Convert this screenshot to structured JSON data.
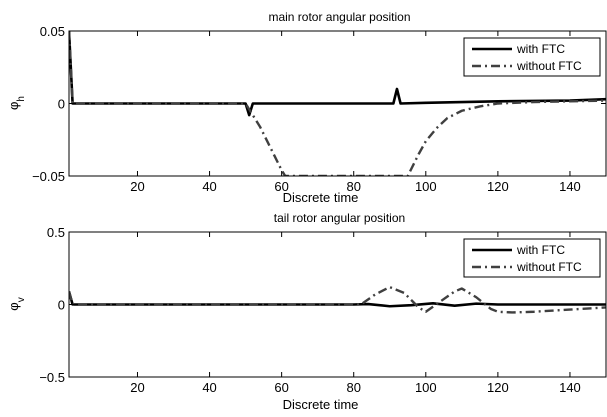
{
  "chart_data": [
    {
      "type": "line",
      "title": "main rotor angular position",
      "xlabel": "Discrete time",
      "ylabel": "φ",
      "ylabel_sub": "h",
      "xlim": [
        1,
        150
      ],
      "ylim": [
        -0.05,
        0.05
      ],
      "xticks": [
        20,
        40,
        60,
        80,
        100,
        120,
        140
      ],
      "yticks": [
        -0.05,
        0,
        0.05
      ],
      "ytick_labels": [
        "−0.05",
        "0",
        "0.05"
      ],
      "legend_position": "top-right",
      "series": [
        {
          "name": "with FTC",
          "style": "solid",
          "color": "#000000",
          "points": [
            [
              1,
              0.05
            ],
            [
              2,
              0
            ],
            [
              50,
              0
            ],
            [
              51,
              -0.008
            ],
            [
              52,
              0
            ],
            [
              91,
              0
            ],
            [
              92,
              0.01
            ],
            [
              93,
              0
            ],
            [
              100,
              0.0005
            ],
            [
              120,
              0.0015
            ],
            [
              140,
              0.002
            ],
            [
              150,
              0.003
            ]
          ]
        },
        {
          "name": "without FTC",
          "style": "dash-dot",
          "color": "#404040",
          "points": [
            [
              1,
              0.05
            ],
            [
              2,
              0
            ],
            [
              50,
              0
            ],
            [
              52,
              -0.008
            ],
            [
              54,
              -0.016
            ],
            [
              56,
              -0.026
            ],
            [
              58,
              -0.036
            ],
            [
              60,
              -0.046
            ],
            [
              61,
              -0.05
            ],
            [
              95,
              -0.05
            ],
            [
              96,
              -0.045
            ],
            [
              98,
              -0.035
            ],
            [
              100,
              -0.026
            ],
            [
              103,
              -0.017
            ],
            [
              106,
              -0.01
            ],
            [
              110,
              -0.005
            ],
            [
              115,
              -0.002
            ],
            [
              120,
              0.0
            ],
            [
              130,
              0.001
            ],
            [
              150,
              0.002
            ]
          ]
        }
      ]
    },
    {
      "type": "line",
      "title": "tail rotor angular position",
      "xlabel": "Discrete time",
      "ylabel": "φ",
      "ylabel_sub": "v",
      "xlim": [
        1,
        150
      ],
      "ylim": [
        -0.5,
        0.5
      ],
      "xticks": [
        20,
        40,
        60,
        80,
        100,
        120,
        140
      ],
      "yticks": [
        -0.5,
        0,
        0.5
      ],
      "ytick_labels": [
        "−0.5",
        "0",
        "0.5"
      ],
      "legend_position": "top-right",
      "series": [
        {
          "name": "with FTC",
          "style": "solid",
          "color": "#000000",
          "points": [
            [
              1,
              0.09
            ],
            [
              2,
              0
            ],
            [
              80,
              0
            ],
            [
              84,
              0.003
            ],
            [
              90,
              -0.012
            ],
            [
              96,
              -0.005
            ],
            [
              102,
              0.008
            ],
            [
              108,
              -0.008
            ],
            [
              114,
              0.006
            ],
            [
              120,
              0
            ],
            [
              150,
              0
            ]
          ]
        },
        {
          "name": "without FTC",
          "style": "dash-dot",
          "color": "#404040",
          "points": [
            [
              1,
              0.09
            ],
            [
              2,
              0
            ],
            [
              82,
              0
            ],
            [
              86,
              0.07
            ],
            [
              90,
              0.12
            ],
            [
              94,
              0.08
            ],
            [
              98,
              -0.02
            ],
            [
              100,
              -0.05
            ],
            [
              104,
              0.02
            ],
            [
              108,
              0.09
            ],
            [
              110,
              0.11
            ],
            [
              114,
              0.05
            ],
            [
              118,
              -0.03
            ],
            [
              120,
              -0.05
            ],
            [
              124,
              -0.055
            ],
            [
              130,
              -0.05
            ],
            [
              140,
              -0.035
            ],
            [
              150,
              -0.02
            ]
          ]
        }
      ]
    }
  ]
}
